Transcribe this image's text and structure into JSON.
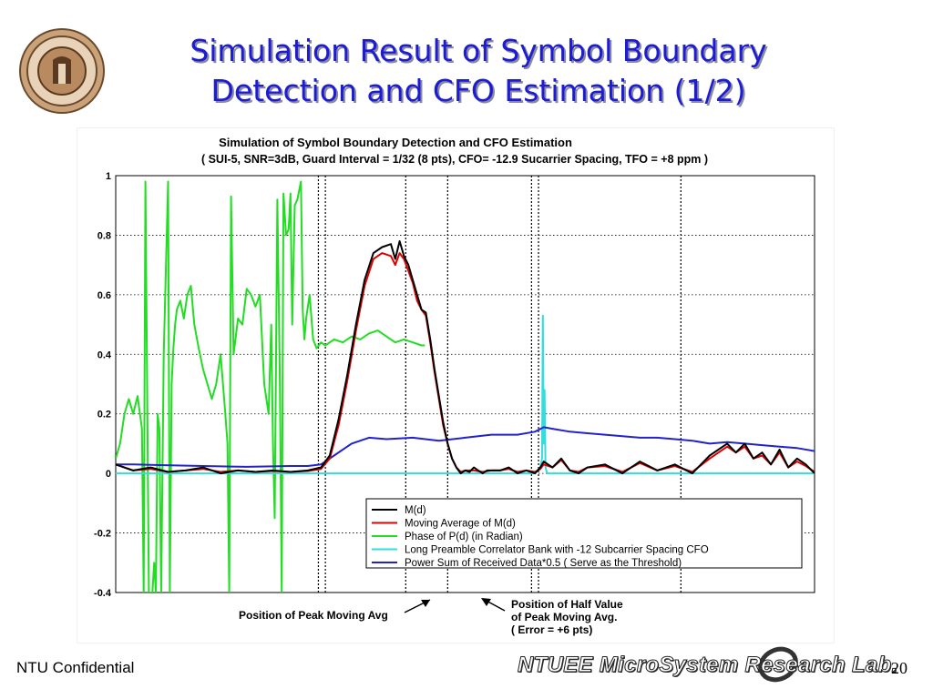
{
  "slide": {
    "title_line1": "Simulation Result of Symbol Boundary",
    "title_line2": "Detection and CFO Estimation (1/2)",
    "footer_left": "NTU Confidential",
    "footer_lab": "NTUEE MicroSystem Research Lab.",
    "page_number": "20",
    "logo_icon": "university-seal-icon",
    "title_color": "#1b1bd8"
  },
  "chart_data": {
    "type": "line",
    "title": "Simulation of Symbol Boundary Detection and CFO Estimation",
    "subtitle": "( SUI-5, SNR=3dB, Guard Interval = 1/32 (8 pts), CFO= -12.9 Sucarrier Spacing, TFO = +8 ppm )",
    "ylim": [
      -0.4,
      1
    ],
    "yticks": [
      -0.4,
      -0.2,
      0,
      0.2,
      0.4,
      0.6,
      0.8,
      1
    ],
    "ytick_labels": [
      "-0.4",
      "-0.2",
      "0",
      "0.2",
      "0.4",
      "0.6",
      "0.8",
      "1"
    ],
    "xlim": [
      0,
      800
    ],
    "grid": true,
    "legend_position": "bottom-right",
    "vlines": [
      {
        "x": 232,
        "style": "dotted"
      },
      {
        "x": 240,
        "style": "dotted"
      },
      {
        "x": 332,
        "style": "dotted"
      },
      {
        "x": 380,
        "style": "dotted"
      },
      {
        "x": 476,
        "style": "dotted"
      },
      {
        "x": 484,
        "style": "dotted"
      },
      {
        "x": 647,
        "style": "dotted"
      }
    ],
    "series": [
      {
        "name": "M(d)",
        "color": "#000000",
        "x": [
          0,
          20,
          40,
          60,
          80,
          100,
          120,
          140,
          160,
          180,
          200,
          220,
          235,
          245,
          255,
          265,
          275,
          285,
          295,
          305,
          315,
          320,
          325,
          330,
          335,
          340,
          345,
          350,
          355,
          360,
          365,
          370,
          375,
          380,
          385,
          390,
          395,
          400,
          405,
          410,
          415,
          420,
          425,
          430,
          440,
          450,
          460,
          470,
          480,
          486,
          490,
          500,
          510,
          520,
          530,
          540,
          560,
          580,
          600,
          620,
          640,
          660,
          680,
          700,
          710,
          720,
          730,
          740,
          750,
          760,
          770,
          780,
          790,
          800
        ],
        "y": [
          0.03,
          0.01,
          0.02,
          0.005,
          0.01,
          0.02,
          0.0,
          0.01,
          0.005,
          0.01,
          0.005,
          0.01,
          0.02,
          0.06,
          0.18,
          0.33,
          0.5,
          0.65,
          0.74,
          0.76,
          0.77,
          0.72,
          0.78,
          0.73,
          0.7,
          0.65,
          0.6,
          0.55,
          0.54,
          0.45,
          0.35,
          0.26,
          0.17,
          0.1,
          0.05,
          0.02,
          0.0,
          0.01,
          0.005,
          0.02,
          0.01,
          0.0,
          0.01,
          0.01,
          0.01,
          0.02,
          0.0,
          0.01,
          0.0,
          0.02,
          0.04,
          0.02,
          0.05,
          0.01,
          0.0,
          0.02,
          0.03,
          0.0,
          0.04,
          0.01,
          0.03,
          0.0,
          0.06,
          0.1,
          0.07,
          0.1,
          0.05,
          0.07,
          0.03,
          0.08,
          0.02,
          0.05,
          0.03,
          0.0
        ]
      },
      {
        "name": "Moving Average of M(d)",
        "color": "#e00000",
        "x": [
          0,
          20,
          40,
          60,
          80,
          100,
          120,
          140,
          160,
          180,
          200,
          220,
          235,
          245,
          255,
          265,
          275,
          285,
          295,
          305,
          315,
          320,
          325,
          330,
          335,
          340,
          345,
          350,
          355,
          360,
          365,
          370,
          375,
          380,
          385,
          390,
          395,
          400,
          410,
          420,
          430,
          440,
          450,
          460,
          470,
          480,
          486,
          490,
          500,
          510,
          520,
          530,
          540,
          560,
          580,
          600,
          620,
          640,
          660,
          680,
          700,
          710,
          720,
          730,
          740,
          750,
          760,
          770,
          780,
          790,
          800
        ],
        "y": [
          0.03,
          0.01,
          0.015,
          0.005,
          0.01,
          0.015,
          0.005,
          0.01,
          0.005,
          0.008,
          0.005,
          0.008,
          0.015,
          0.05,
          0.16,
          0.31,
          0.48,
          0.63,
          0.72,
          0.74,
          0.73,
          0.7,
          0.74,
          0.72,
          0.68,
          0.64,
          0.58,
          0.55,
          0.53,
          0.44,
          0.34,
          0.25,
          0.16,
          0.1,
          0.05,
          0.02,
          0.005,
          0.01,
          0.01,
          0.005,
          0.01,
          0.01,
          0.015,
          0.005,
          0.01,
          0.005,
          0.015,
          0.03,
          0.02,
          0.045,
          0.01,
          0.005,
          0.02,
          0.025,
          0.005,
          0.035,
          0.01,
          0.025,
          0.005,
          0.05,
          0.09,
          0.07,
          0.09,
          0.05,
          0.06,
          0.03,
          0.07,
          0.02,
          0.04,
          0.025,
          0.005
        ]
      },
      {
        "name": "Phase of P(d) (in Radian)",
        "color": "#22dd22",
        "x": [
          0,
          5,
          10,
          15,
          20,
          25,
          30,
          32,
          34,
          38,
          42,
          44,
          46,
          48,
          50,
          52,
          55,
          60,
          62,
          64,
          66,
          68,
          70,
          74,
          78,
          82,
          86,
          90,
          95,
          100,
          105,
          110,
          115,
          120,
          125,
          128,
          130,
          132,
          135,
          140,
          145,
          150,
          155,
          160,
          165,
          170,
          175,
          178,
          180,
          182,
          185,
          188,
          190,
          192,
          195,
          198,
          200,
          202,
          205,
          208,
          210,
          212,
          214,
          216,
          218,
          222,
          226,
          230,
          235,
          240,
          250,
          260,
          270,
          280,
          290,
          300,
          310,
          320,
          330,
          340,
          350,
          354
        ],
        "y": [
          0.05,
          0.1,
          0.2,
          0.25,
          0.2,
          0.26,
          0.15,
          -0.4,
          0.98,
          -0.4,
          -0.4,
          -0.3,
          -0.4,
          0.2,
          0.15,
          -0.4,
          0.4,
          0.98,
          -0.4,
          0.3,
          0.42,
          0.5,
          0.55,
          0.58,
          0.52,
          0.6,
          0.63,
          0.5,
          0.42,
          0.35,
          0.3,
          0.25,
          0.3,
          0.4,
          0.22,
          0.1,
          -0.4,
          0.93,
          0.4,
          0.52,
          0.5,
          0.62,
          0.6,
          0.56,
          0.6,
          0.3,
          0.2,
          0.5,
          0.1,
          -0.15,
          0.92,
          0.3,
          -0.4,
          0.94,
          0.8,
          0.82,
          0.94,
          0.5,
          0.9,
          0.92,
          0.95,
          0.98,
          0.55,
          0.45,
          0.52,
          0.6,
          0.45,
          0.42,
          0.44,
          0.43,
          0.45,
          0.44,
          0.46,
          0.45,
          0.47,
          0.48,
          0.46,
          0.44,
          0.45,
          0.44,
          0.43,
          0.43
        ]
      },
      {
        "name": "Long Preamble Correlator Bank with -12 Subcarrier Spacing CFO",
        "color": "#33dddd",
        "x": [
          0,
          100,
          200,
          300,
          400,
          480,
          486,
          488,
          489,
          490,
          491,
          492,
          494,
          500,
          600,
          700,
          800
        ],
        "y": [
          0.0,
          0.0,
          0.0,
          0.0,
          0.0,
          0.0,
          0.02,
          0.05,
          0.53,
          0.1,
          0.28,
          0.02,
          0.0,
          0.0,
          0.0,
          0.0,
          0.0
        ]
      },
      {
        "name": "Power Sum of Received Data*0.5 ( Serve as the Threshold)",
        "color": "#2222cc",
        "x": [
          0,
          20,
          50,
          100,
          150,
          200,
          220,
          235,
          250,
          270,
          290,
          310,
          340,
          370,
          400,
          430,
          460,
          480,
          490,
          500,
          520,
          540,
          560,
          580,
          600,
          620,
          640,
          660,
          680,
          700,
          720,
          740,
          760,
          780,
          800
        ],
        "y": [
          0.03,
          0.03,
          0.028,
          0.025,
          0.022,
          0.025,
          0.025,
          0.03,
          0.06,
          0.1,
          0.12,
          0.115,
          0.12,
          0.11,
          0.12,
          0.13,
          0.13,
          0.14,
          0.155,
          0.15,
          0.14,
          0.135,
          0.13,
          0.125,
          0.12,
          0.12,
          0.115,
          0.11,
          0.1,
          0.105,
          0.1,
          0.095,
          0.09,
          0.085,
          0.075
        ]
      }
    ],
    "annotations": {
      "peak_label": "Position of Peak Moving Avg",
      "half_label_1": "Position of Half Value",
      "half_label_2": "of Peak Moving Avg.",
      "half_label_3": "( Error = +6 pts)"
    }
  }
}
